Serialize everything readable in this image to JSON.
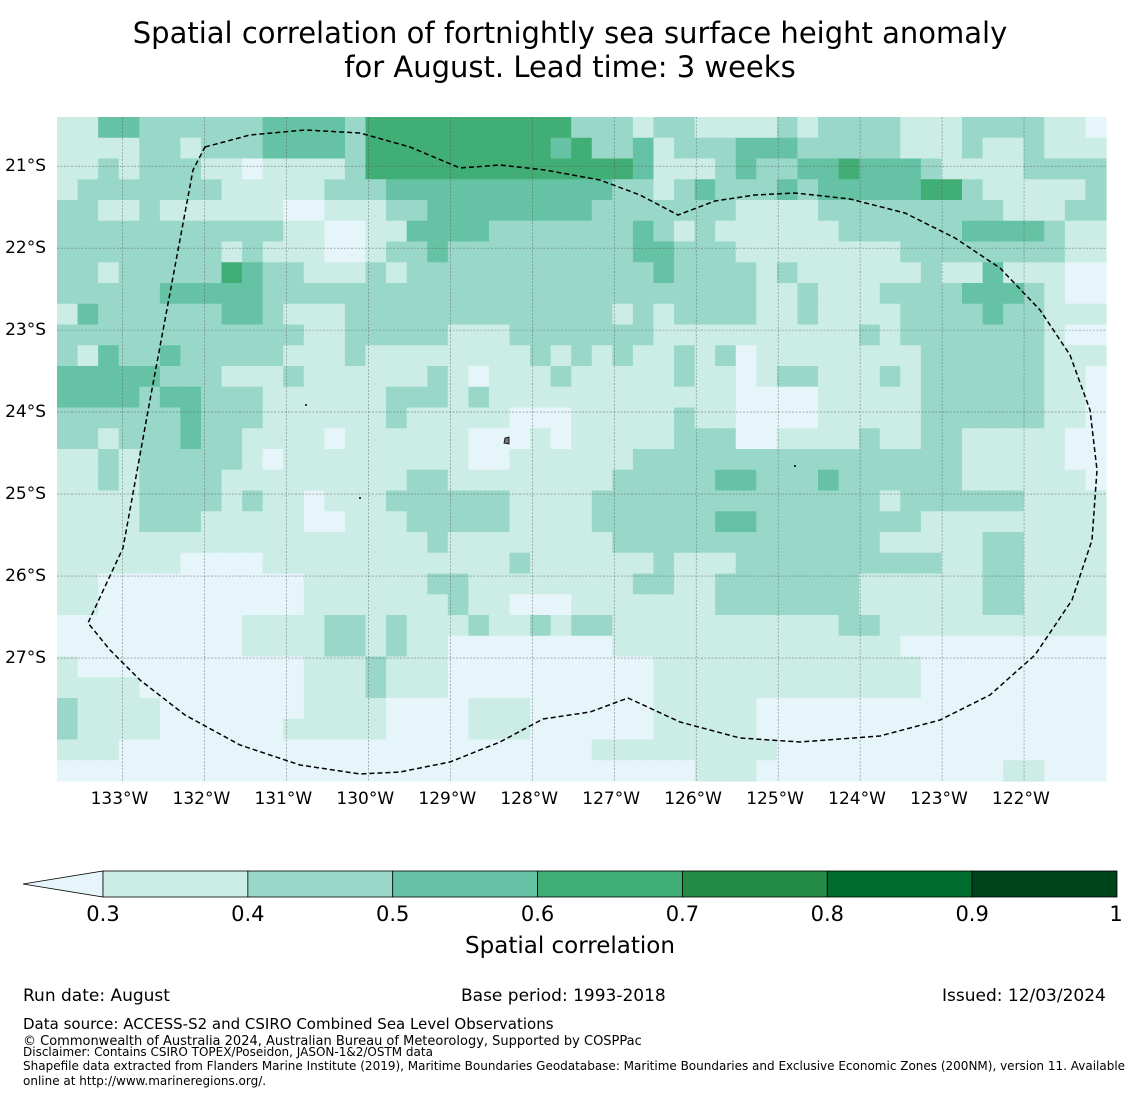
{
  "title": {
    "line1": "Spatial correlation of fortnightly sea surface height anomaly",
    "line2": "for August. Lead time: 3 weeks"
  },
  "map": {
    "lon_range": [
      -133.8,
      -121.0
    ],
    "lat_range": [
      -28.5,
      -20.4
    ],
    "lon_ticks": [
      "133°W",
      "132°W",
      "131°W",
      "130°W",
      "129°W",
      "128°W",
      "127°W",
      "126°W",
      "125°W",
      "124°W",
      "123°W",
      "122°W"
    ],
    "lat_ticks": [
      "21°S",
      "22°S",
      "23°S",
      "24°S",
      "25°S",
      "26°S",
      "27°S"
    ],
    "gridlines": true,
    "overlay": "EEZ boundary (dashed)",
    "grid_cols": 51,
    "grid_rows": 32,
    "grid_rows_data": [
      "113322222233332444444444422212211112122221112222110",
      "111122122233332444444444342231222333222221112112111",
      "112122211011112444444444444431112322334333211112222",
      "122222221111122233333333333221232223233333442111112",
      "221121111110011122333333332222222111122222222211122",
      "222222222221100113333222222232121111112222223333211",
      "222222221211100122322222222233222111111112222222211",
      "221222224322111212222222222223222212111111211311100",
      "222223333322222222222222222222222211211122223332100",
      "132222223321112222222222222121222211211112222322111",
      "222222222222112222211122222221111111111212222222100",
      "213223222221112111111112121211212011111111222222111",
      "333332221112111111210111211111211012211121222222110",
      "333323322211111122212111111111111000011111222222110",
      "222222322211111121111100011111211000011111222222110",
      "221222322111101111110001011111222001111211221111100",
      "112122222101111111110011111122222222222222221111100",
      "112122221111111112211111111222223322232222221111110",
      "111122221211011122222211112222222222222212222221111",
      "111122211111001112222211112222223322222222111111111",
      "111111111111111111211111111222222222222211111221111",
      "111111000011111111111121111112111222222222211221111",
      "110000000000111111221111111122112222222111111221111",
      "110000000000111111121100011111112222222111111221111",
      "000000000111122121112112122111111111112211111111111",
      "000000000111122121100000000111111111111110000000000",
      "100000000000111211100000000001111111111111000000000",
      "111100000000111211100000000001111111111111000000000",
      "211110000000111100001110000001111100000000000000000",
      "211110000001111100001110000001111100000000000000000",
      "111000000000000000000000001111111110000000000000000",
      "000000000000000000000000000000011100000000000011000"
    ]
  },
  "colorbar": {
    "ticks": [
      "0.3",
      "0.4",
      "0.5",
      "0.6",
      "0.7",
      "0.8",
      "0.9",
      "1"
    ],
    "colors": [
      "#ccece6",
      "#99d8c9",
      "#66c2a4",
      "#41ae76",
      "#238b45",
      "#006d2c",
      "#00441b"
    ],
    "under_color": "#e5f5f9",
    "label": "Spatial correlation"
  },
  "footer": {
    "run_date": "Run date: August",
    "base_period": "Base period: 1993-2018",
    "issued": "Issued: 12/03/2024",
    "data_source": "Data source: ACCESS-S2 and CSIRO Combined Sea Level Observations",
    "copyright": "© Commonwealth of Australia 2024, Australian Bureau of Meteorology, Supported by COSPPac",
    "disclaimer": "Disclaimer: Contains CSIRO TOPEX/Poseidon, JASON-1&2/OSTM data",
    "shapefile_line1": "Shapefile data extracted from Flanders Marine Institute (2019), Maritime Boundaries Geodatabase: Maritime Boundaries and Exclusive Economic Zones (200NM), version 11. Available",
    "shapefile_line2": "online at http://www.marineregions.org/."
  }
}
